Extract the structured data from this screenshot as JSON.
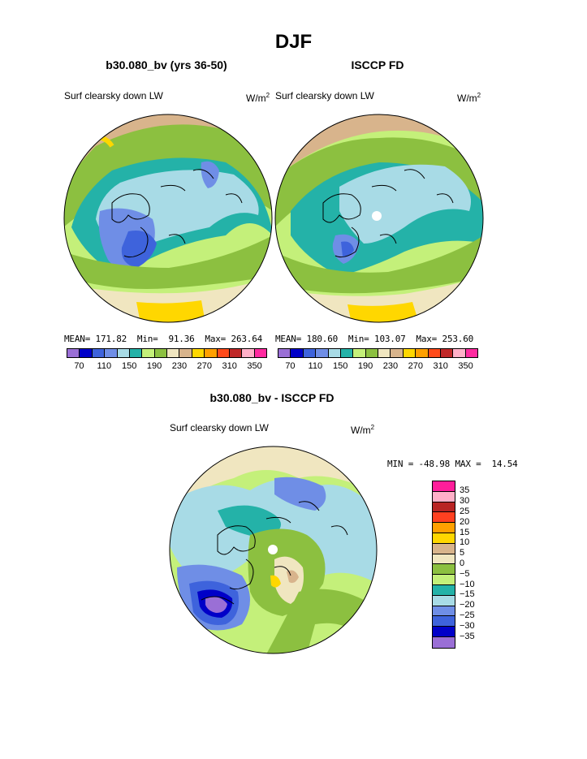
{
  "figure": {
    "title": "DJF"
  },
  "panels": [
    {
      "title": "b30.080_bv (yrs 36-50)",
      "variable": "Surf clearsky down LW",
      "units": "W/m",
      "units_exp": "2",
      "stats": "MEAN= 171.82  Min=  91.36  Max= 263.64"
    },
    {
      "title": "ISCCP FD",
      "variable": "Surf clearsky down LW",
      "units": "W/m",
      "units_exp": "2",
      "stats": "MEAN= 180.60  Min= 103.07  Max= 253.60"
    },
    {
      "title": "b30.080_bv - ISCCP FD",
      "variable": "Surf clearsky down LW",
      "units": "W/m",
      "units_exp": "2",
      "stats": "MIN = -48.98 MAX =  14.54"
    }
  ],
  "colorbar_abs": {
    "colors": [
      "#9a6fd6",
      "#0000c8",
      "#3e63dc",
      "#6f8ee6",
      "#a8dbe6",
      "#24b2a8",
      "#c4f07a",
      "#8cc040",
      "#f0e6c0",
      "#d8b48c",
      "#ffd700",
      "#ffa000",
      "#ff4a1a",
      "#c02828",
      "#ffb0c8",
      "#ff2aa0"
    ],
    "ticks": [
      "70",
      "110",
      "150",
      "190",
      "230",
      "270",
      "310",
      "350"
    ]
  },
  "colorbar_diff": {
    "colors": [
      "#ff1e9a",
      "#ffb0c8",
      "#b82424",
      "#ff4020",
      "#ffa000",
      "#ffd700",
      "#d8b48c",
      "#f0e6c0",
      "#8cc040",
      "#c4f07a",
      "#24b2a8",
      "#a8dbe6",
      "#6f8ee6",
      "#3e63dc",
      "#0000c8",
      "#9a6fd6"
    ],
    "labels": [
      "35",
      "30",
      "25",
      "20",
      "15",
      "10",
      "5",
      "0",
      "−5",
      "−10",
      "−15",
      "−20",
      "−25",
      "−30",
      "−35"
    ]
  },
  "map_colors": {
    "teal": "#24b2a8",
    "lightblue": "#a8dbe6",
    "lightgreen": "#c4f07a",
    "green": "#8cc040",
    "tan": "#d8b48c",
    "beige": "#f0e6c0",
    "yellow": "#ffd700",
    "blue": "#6f8ee6",
    "medblue": "#3e63dc",
    "darkblue": "#0000c8",
    "purple": "#9a6fd6",
    "coast": "#000000"
  }
}
